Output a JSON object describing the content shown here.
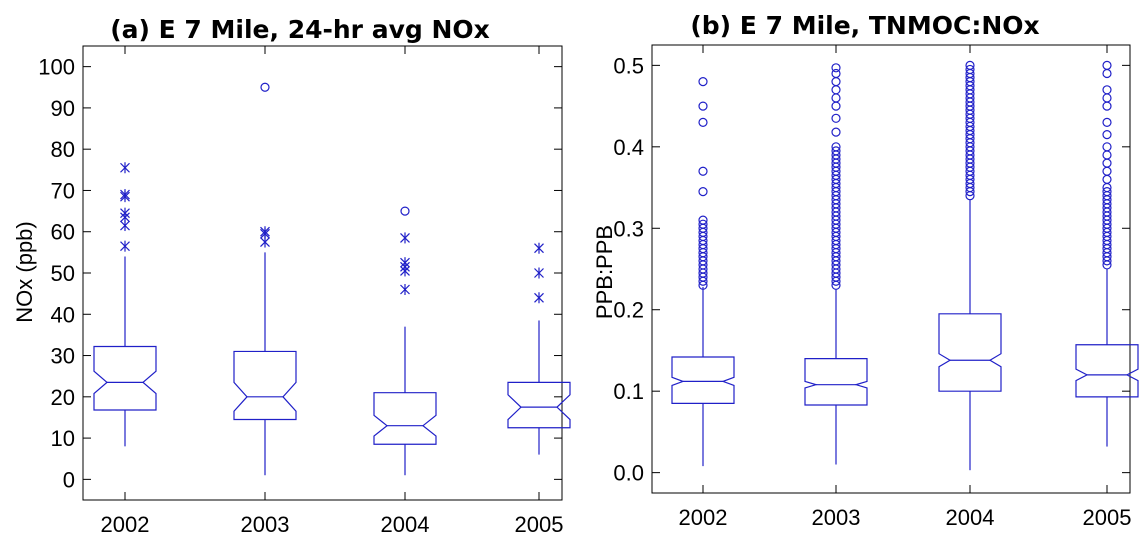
{
  "chart_data": [
    {
      "type": "box",
      "title": "(a) E 7 Mile, 24-hr avg NOx",
      "xlabel": "",
      "ylabel": "NOx (ppb)",
      "ylim": [
        -5,
        105
      ],
      "yticks": [
        "0",
        "10",
        "20",
        "30",
        "40",
        "50",
        "60",
        "70",
        "80",
        "90",
        "100"
      ],
      "notched": true,
      "grid": false,
      "color": "#2020c8",
      "categories": [
        "2002",
        "2003",
        "2004",
        "2005"
      ],
      "boxes": [
        {
          "whisker_low": 8,
          "q1": 16.8,
          "median": 23.5,
          "q3": 32.2,
          "whisker_high": 54,
          "notch_low": 20.8,
          "notch_high": 26.2,
          "outliers_star": [
            56.5,
            61.5,
            63.5,
            64.5,
            68.5,
            69,
            75.5
          ],
          "outliers_circle": []
        },
        {
          "whisker_low": 1,
          "q1": 14.5,
          "median": 20,
          "q3": 31,
          "whisker_high": 55,
          "notch_low": 16.5,
          "notch_high": 23.5,
          "outliers_star": [
            57.5,
            59.5,
            60
          ],
          "outliers_circle": [
            95
          ]
        },
        {
          "whisker_low": 1,
          "q1": 8.5,
          "median": 13,
          "q3": 21,
          "whisker_high": 37,
          "notch_low": 10.5,
          "notch_high": 15.5,
          "outliers_star": [
            46,
            50.5,
            51.5,
            52.5,
            58.5
          ],
          "outliers_circle": [
            65
          ]
        },
        {
          "whisker_low": 6,
          "q1": 12.5,
          "median": 17.5,
          "q3": 23.5,
          "whisker_high": 38.5,
          "notch_low": 14.5,
          "notch_high": 20.5,
          "outliers_star": [
            44,
            50,
            56
          ],
          "outliers_circle": []
        }
      ]
    },
    {
      "type": "box",
      "title": "(b) E 7 Mile, TNMOC:NOx",
      "xlabel": "",
      "ylabel": "PPB:PPB",
      "ylim": [
        -0.025,
        0.525
      ],
      "yticks": [
        "0.0",
        "0.1",
        "0.2",
        "0.3",
        "0.4",
        "0.5"
      ],
      "notched": true,
      "grid": false,
      "color": "#2020c8",
      "categories": [
        "2002",
        "2003",
        "2004",
        "2005"
      ],
      "boxes": [
        {
          "whisker_low": 0.008,
          "q1": 0.085,
          "median": 0.112,
          "q3": 0.142,
          "whisker_high": 0.228,
          "notch_low": 0.107,
          "notch_high": 0.117,
          "outliers_circle": [
            0.23,
            0.235,
            0.24,
            0.245,
            0.25,
            0.255,
            0.26,
            0.265,
            0.27,
            0.275,
            0.28,
            0.285,
            0.29,
            0.295,
            0.3,
            0.305,
            0.31,
            0.345,
            0.37,
            0.43,
            0.45,
            0.48
          ]
        },
        {
          "whisker_low": 0.01,
          "q1": 0.083,
          "median": 0.108,
          "q3": 0.14,
          "whisker_high": 0.225,
          "notch_low": 0.104,
          "notch_high": 0.112,
          "outliers_circle": [
            0.23,
            0.235,
            0.24,
            0.245,
            0.25,
            0.255,
            0.26,
            0.265,
            0.27,
            0.275,
            0.28,
            0.285,
            0.29,
            0.295,
            0.3,
            0.305,
            0.31,
            0.315,
            0.32,
            0.325,
            0.33,
            0.335,
            0.34,
            0.345,
            0.35,
            0.355,
            0.36,
            0.365,
            0.37,
            0.375,
            0.38,
            0.385,
            0.39,
            0.395,
            0.4,
            0.418,
            0.435,
            0.45,
            0.46,
            0.47,
            0.48,
            0.49,
            0.497
          ]
        },
        {
          "whisker_low": 0.003,
          "q1": 0.1,
          "median": 0.138,
          "q3": 0.195,
          "whisker_high": 0.335,
          "notch_low": 0.13,
          "notch_high": 0.146,
          "outliers_circle": [
            0.34,
            0.345,
            0.35,
            0.355,
            0.36,
            0.365,
            0.37,
            0.375,
            0.38,
            0.385,
            0.39,
            0.395,
            0.4,
            0.405,
            0.41,
            0.415,
            0.42,
            0.425,
            0.43,
            0.435,
            0.44,
            0.445,
            0.45,
            0.455,
            0.46,
            0.465,
            0.47,
            0.475,
            0.48,
            0.485,
            0.49,
            0.495,
            0.5
          ]
        },
        {
          "whisker_low": 0.032,
          "q1": 0.093,
          "median": 0.12,
          "q3": 0.157,
          "whisker_high": 0.25,
          "notch_low": 0.113,
          "notch_high": 0.127,
          "outliers_circle": [
            0.255,
            0.26,
            0.265,
            0.27,
            0.275,
            0.28,
            0.285,
            0.29,
            0.295,
            0.3,
            0.305,
            0.31,
            0.315,
            0.32,
            0.325,
            0.33,
            0.335,
            0.34,
            0.345,
            0.35,
            0.36,
            0.37,
            0.38,
            0.39,
            0.4,
            0.415,
            0.43,
            0.45,
            0.46,
            0.47,
            0.49,
            0.5
          ]
        }
      ]
    }
  ]
}
